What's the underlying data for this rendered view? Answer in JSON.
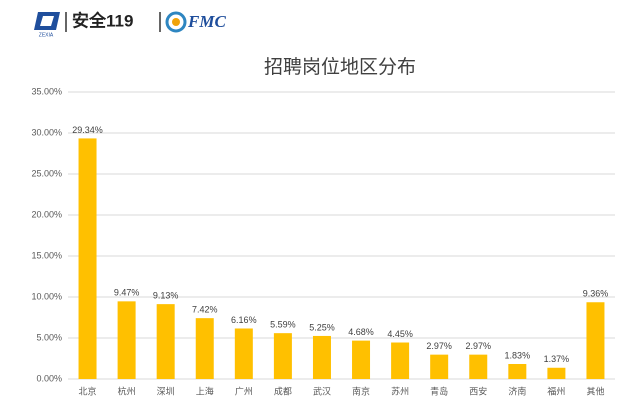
{
  "header": {
    "brand_mark": "ZEXIA",
    "brand": "安全119",
    "partner": "FMC"
  },
  "chart_data": {
    "type": "bar",
    "title": "招聘岗位地区分布",
    "categories": [
      "北京",
      "杭州",
      "深圳",
      "上海",
      "广州",
      "成都",
      "武汉",
      "南京",
      "苏州",
      "青岛",
      "西安",
      "济南",
      "福州",
      "其他"
    ],
    "values": [
      29.34,
      9.47,
      9.13,
      7.42,
      6.16,
      5.59,
      5.25,
      4.68,
      4.45,
      2.97,
      2.97,
      1.83,
      1.37,
      9.36
    ],
    "value_labels": [
      "29.34%",
      "9.47%",
      "9.13%",
      "7.42%",
      "6.16%",
      "5.59%",
      "5.25%",
      "4.68%",
      "4.45%",
      "2.97%",
      "2.97%",
      "1.83%",
      "1.37%",
      "9.36%"
    ],
    "color": "#ffc000",
    "ylim": [
      0,
      35
    ],
    "yticks": [
      {
        "value": 0,
        "label": "0.00%"
      },
      {
        "value": 5,
        "label": "5.00%"
      },
      {
        "value": 10,
        "label": "10.00%"
      },
      {
        "value": 15,
        "label": "15.00%"
      },
      {
        "value": 20,
        "label": "20.00%"
      },
      {
        "value": 25,
        "label": "25.00%"
      },
      {
        "value": 30,
        "label": "30.00%"
      },
      {
        "value": 35,
        "label": "35.00%"
      }
    ],
    "grid": true
  }
}
